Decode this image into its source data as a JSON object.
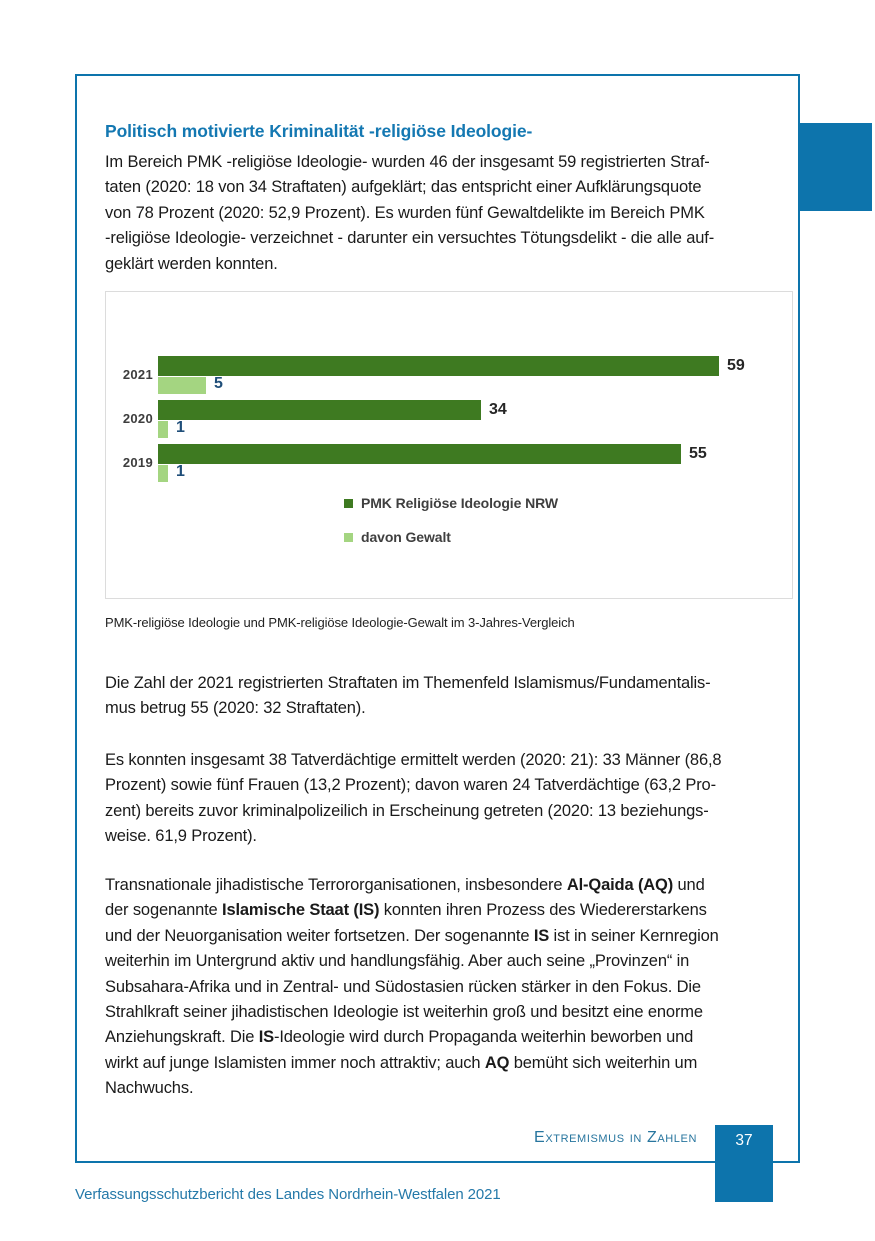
{
  "content": {
    "heading": "Politisch motivierte Kriminalität -religiöse Ideologie-",
    "paragraphs": [
      [
        [
          {
            "t": "Im Bereich PMK -religiöse Ideologie- wurden 46 der insgesamt 59 registrierten Straf-"
          }
        ],
        [
          {
            "t": "taten (2020: 18 von 34 Straftaten) aufgeklärt; das entspricht einer Aufklärungsquote"
          }
        ],
        [
          {
            "t": "von 78 Prozent (2020: 52,9 Prozent). Es wurden fünf Gewaltdelikte im Bereich PMK"
          }
        ],
        [
          {
            "t": "-religiöse Ideologie- verzeichnet - darunter ein versuchtes Tötungsdelikt - die alle auf-"
          }
        ],
        [
          {
            "t": "geklärt werden konnten."
          }
        ]
      ],
      [
        [
          {
            "t": "Die Zahl der 2021 registrierten Straftaten im Themenfeld Islamismus/Fundamentalis-"
          }
        ],
        [
          {
            "t": "mus betrug 55 (2020: 32 Straftaten)."
          }
        ]
      ],
      [
        [
          {
            "t": "Es konnten insgesamt 38 Tatverdächtige ermittelt werden (2020: 21): 33 Männer (86,8"
          }
        ],
        [
          {
            "t": "Prozent) sowie fünf Frauen (13,2 Prozent); davon waren 24 Tatverdächtige (63,2 Pro-"
          }
        ],
        [
          {
            "t": "zent) bereits zuvor kriminalpolizeilich in Erscheinung getreten (2020: 13 beziehungs-"
          }
        ],
        [
          {
            "t": "weise. 61,9 Prozent)."
          }
        ]
      ],
      [
        [
          {
            "t": "Transnationale jihadistische Terrororganisationen, insbesondere "
          },
          {
            "t": "Al-Qaida (AQ)",
            "b": true
          },
          {
            "t": " und"
          }
        ],
        [
          {
            "t": "der sogenannte "
          },
          {
            "t": "Islamische Staat (IS)",
            "b": true
          },
          {
            "t": " konnten ihren Prozess des Wiedererstarkens"
          }
        ],
        [
          {
            "t": "und der Neuorganisation weiter fortsetzen. Der sogenannte "
          },
          {
            "t": "IS",
            "b": true
          },
          {
            "t": " ist in seiner Kernregion"
          }
        ],
        [
          {
            "t": "weiterhin im Untergrund aktiv und handlungsfähig. Aber auch seine „Provinzen“ in"
          }
        ],
        [
          {
            "t": "Subsahara-Afrika und in Zentral- und Südostasien rücken stärker in den Fokus. Die"
          }
        ],
        [
          {
            "t": "Strahlkraft seiner jihadistischen Ideologie ist weiterhin groß und besitzt eine enorme"
          }
        ],
        [
          {
            "t": "Anziehungskraft. Die "
          },
          {
            "t": "IS",
            "b": true
          },
          {
            "t": "-Ideologie wird durch Propaganda weiterhin beworben und"
          }
        ],
        [
          {
            "t": "wirkt auf junge Islamisten immer noch attraktiv; auch "
          },
          {
            "t": "AQ",
            "b": true
          },
          {
            "t": " bemüht sich weiterhin um"
          }
        ],
        [
          {
            "t": "Nachwuchs."
          }
        ]
      ]
    ],
    "chart_caption": "PMK-religiöse Ideologie und PMK-religiöse Ideologie-Gewalt im 3-Jahres-Vergleich"
  },
  "chart_data": {
    "type": "bar",
    "orientation": "horizontal",
    "title": "",
    "categories": [
      "2021",
      "2020",
      "2019"
    ],
    "series": [
      {
        "name": "PMK Religiöse Ideologie NRW",
        "values": [
          59,
          34,
          55
        ],
        "color": "#3e7a21",
        "label_color": "#262626"
      },
      {
        "name": "davon Gewalt",
        "values": [
          5,
          1,
          1
        ],
        "color": "#a4d581",
        "label_color": "#1f4e79"
      }
    ],
    "xlim": [
      0,
      59
    ],
    "value_labels": true,
    "legend_position": "bottom-center",
    "grid": false
  },
  "footer": {
    "section_label": "Extremismus in Zahlen",
    "page_number": "37",
    "report_title": "Verfassungsschutzbericht des Landes Nordrhein-Westfalen 2021"
  },
  "colors": {
    "accent_blue": "#0d74ac",
    "heading_blue": "#1478b2",
    "footer_blue": "#27759e",
    "note_blue": "#2579a9",
    "bar_dark_green": "#3e7a21",
    "bar_light_green": "#a4d581",
    "body_text": "#1a1a1a"
  }
}
